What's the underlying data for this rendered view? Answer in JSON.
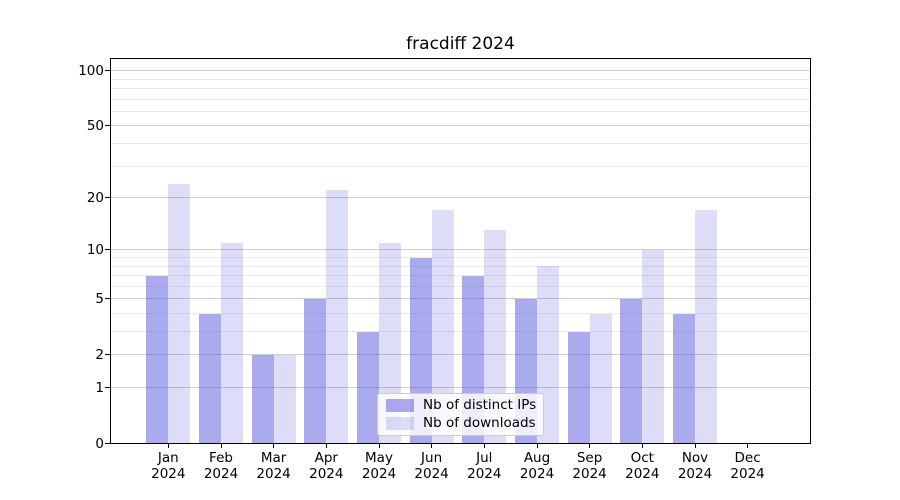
{
  "title": "fracdiff 2024",
  "legend": {
    "items": [
      {
        "label": "Nb of distinct IPs",
        "color": "rgba(85,85,221,0.5)"
      },
      {
        "label": "Nb of downloads",
        "color": "rgba(85,85,221,0.2)"
      }
    ],
    "position": "lower center"
  },
  "chart_data": {
    "type": "bar",
    "title": "fracdiff 2024",
    "xlabel": "",
    "ylabel": "",
    "categories": [
      "Jan 2024",
      "Feb 2024",
      "Mar 2024",
      "Apr 2024",
      "May 2024",
      "Jun 2024",
      "Jul 2024",
      "Aug 2024",
      "Sep 2024",
      "Oct 2024",
      "Nov 2024",
      "Dec 2024"
    ],
    "x_tick_labels": [
      [
        "Jan",
        "2024"
      ],
      [
        "Feb",
        "2024"
      ],
      [
        "Mar",
        "2024"
      ],
      [
        "Apr",
        "2024"
      ],
      [
        "May",
        "2024"
      ],
      [
        "Jun",
        "2024"
      ],
      [
        "Jul",
        "2024"
      ],
      [
        "Aug",
        "2024"
      ],
      [
        "Sep",
        "2024"
      ],
      [
        "Oct",
        "2024"
      ],
      [
        "Nov",
        "2024"
      ],
      [
        "Dec",
        "2024"
      ]
    ],
    "series": [
      {
        "name": "Nb of distinct IPs",
        "color": "rgba(85,85,221,0.5)",
        "values": [
          7,
          4,
          2,
          5,
          3,
          9,
          7,
          5,
          3,
          5,
          4,
          0
        ]
      },
      {
        "name": "Nb of downloads",
        "color": "rgba(85,85,221,0.2)",
        "values": [
          24,
          11,
          2,
          22,
          11,
          17,
          13,
          8,
          4,
          10,
          17,
          0
        ]
      }
    ],
    "yscale": "log1p",
    "ylim": [
      0,
      115
    ],
    "y_major_ticks": [
      0,
      1,
      2,
      5,
      10,
      20,
      50,
      100
    ],
    "y_major_tick_labels": [
      "0",
      "1",
      "2",
      "5",
      "10",
      "20",
      "50",
      "100"
    ],
    "y_minor_gridlines": [
      3,
      4,
      6,
      7,
      8,
      9,
      30,
      40,
      60,
      70,
      80,
      90
    ],
    "grid": true,
    "legend_position": "lower center"
  },
  "colors": {
    "background": "#ffffff",
    "axis": "#000000",
    "grid_major": "#cfcfcf",
    "grid_minor": "#ebebeb",
    "legend_border": "#cccccc",
    "legend_background": "rgba(255,255,255,0.8)",
    "bar_distinct_ips": "rgba(85,85,221,0.5)",
    "bar_downloads": "rgba(85,85,221,0.2)"
  }
}
